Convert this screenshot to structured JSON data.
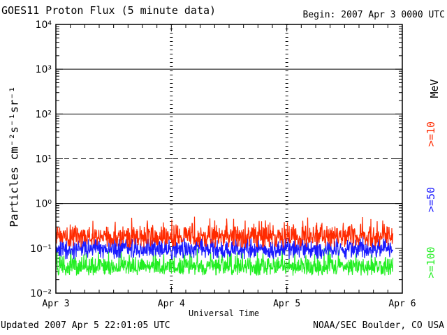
{
  "title": "GOES11 Proton Flux (5 minute data)",
  "begin_text": "Begin: 2007 Apr 3 0000 UTC",
  "updated_text": "Updated 2007 Apr  5 22:01:05 UTC",
  "org_text": "NOAA/SEC Boulder, CO USA",
  "colors": {
    "ge10": "#ff2a00",
    "ge50": "#1a1aff",
    "ge100": "#22ee22",
    "axis": "#000000"
  },
  "chart_data": {
    "type": "line",
    "title": "GOES11 Proton Flux (5 minute data)",
    "xlabel": "Universal Time",
    "ylabel": "Particles cm⁻²s⁻¹sr⁻¹",
    "yscale": "log",
    "ylim": [
      0.01,
      10000
    ],
    "xlim": [
      "2007-04-03 00:00",
      "2007-04-06 00:00"
    ],
    "x_ticks": [
      "Apr 3",
      "Apr 4",
      "Apr 5",
      "Apr 6"
    ],
    "y_ticks": [
      "10⁻²",
      "10⁻¹",
      "10⁰",
      "10¹",
      "10²",
      "10³",
      "10⁴"
    ],
    "y_tick_values": [
      0.01,
      0.1,
      1,
      10,
      100,
      1000,
      10000
    ],
    "hlines": [
      {
        "y": 1,
        "style": "solid"
      },
      {
        "y": 10,
        "style": "dashed"
      },
      {
        "y": 100,
        "style": "solid"
      },
      {
        "y": 1000,
        "style": "solid"
      }
    ],
    "data_end": "2007-04-05 22:00",
    "legend_unit": "MeV",
    "series": [
      {
        "name": ">=10",
        "color": "#ff2a00",
        "typical": 0.18,
        "range": [
          0.09,
          0.55
        ]
      },
      {
        "name": ">=50",
        "color": "#1a1aff",
        "typical": 0.1,
        "range": [
          0.05,
          0.2
        ]
      },
      {
        "name": ">=100",
        "color": "#22ee22",
        "typical": 0.038,
        "range": [
          0.022,
          0.11
        ]
      }
    ]
  }
}
